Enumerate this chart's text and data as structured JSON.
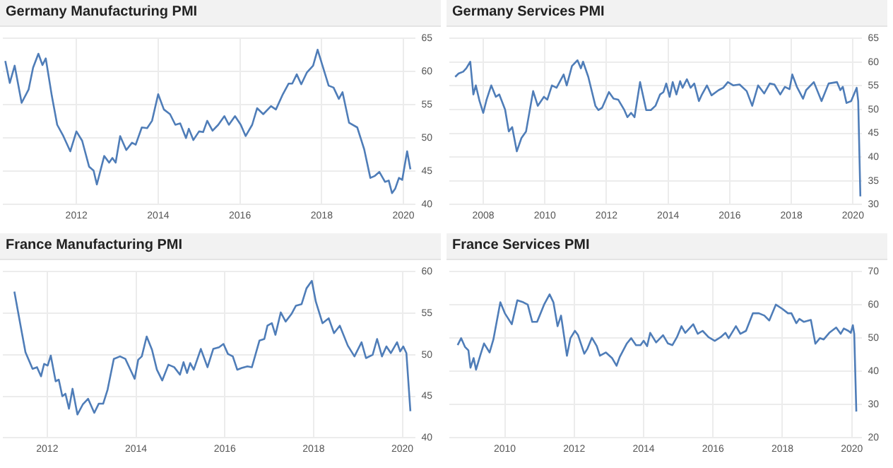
{
  "chart_data": [
    {
      "type": "line",
      "title": "Germany Manufacturing PMI",
      "color": "#4f7db8",
      "marker": "none",
      "grid": true,
      "xlim": [
        2010.2,
        2020.3
      ],
      "xticks": [
        2012,
        2014,
        2016,
        2018,
        2020
      ],
      "ylim": [
        40,
        65
      ],
      "yticks": [
        40,
        45,
        50,
        55,
        60,
        65
      ],
      "x": [
        2010.26,
        2010.37,
        2010.49,
        2010.66,
        2010.83,
        2010.94,
        2011.07,
        2011.17,
        2011.25,
        2011.4,
        2011.53,
        2011.68,
        2011.85,
        2012.0,
        2012.14,
        2012.31,
        2012.42,
        2012.5,
        2012.68,
        2012.8,
        2012.88,
        2012.96,
        2013.07,
        2013.22,
        2013.36,
        2013.45,
        2013.6,
        2013.73,
        2013.85,
        2014.0,
        2014.14,
        2014.29,
        2014.42,
        2014.54,
        2014.68,
        2014.75,
        2014.86,
        2015.0,
        2015.1,
        2015.2,
        2015.33,
        2015.47,
        2015.62,
        2015.73,
        2015.88,
        2016.02,
        2016.14,
        2016.3,
        2016.42,
        2016.57,
        2016.76,
        2016.88,
        2017.05,
        2017.19,
        2017.28,
        2017.39,
        2017.5,
        2017.64,
        2017.79,
        2017.9,
        2018.02,
        2018.17,
        2018.29,
        2018.42,
        2018.51,
        2018.67,
        2018.87,
        2019.04,
        2019.19,
        2019.3,
        2019.41,
        2019.55,
        2019.64,
        2019.72,
        2019.8,
        2019.89,
        2019.97,
        2020.09,
        2020.17
      ],
      "values": [
        61.6,
        58.3,
        60.9,
        55.3,
        57.3,
        60.6,
        62.7,
        61,
        62,
        56.3,
        52,
        50.3,
        48,
        51,
        49.6,
        45.7,
        45.1,
        43,
        47.3,
        46.3,
        47,
        46.3,
        50.3,
        48.2,
        49.3,
        49,
        51.6,
        51.5,
        52.6,
        56.6,
        54.3,
        53.6,
        52,
        52.2,
        50,
        51.4,
        49.7,
        51,
        50.9,
        52.6,
        51.1,
        52,
        53.3,
        52,
        53.3,
        52,
        50.3,
        52,
        54.5,
        53.6,
        54.8,
        54.3,
        56.6,
        58.2,
        58.2,
        59.6,
        58.1,
        59.9,
        60.9,
        63.3,
        60.9,
        57.9,
        57.6,
        55.9,
        56.9,
        52.3,
        51.6,
        48.3,
        44,
        44.3,
        44.9,
        43.4,
        43.6,
        41.7,
        42.4,
        44,
        43.7,
        48,
        45.3
      ]
    },
    {
      "type": "line",
      "title": "Germany Services PMI",
      "color": "#4f7db8",
      "marker": "none",
      "grid": true,
      "xlim": [
        2006.9,
        2020.3
      ],
      "xticks": [
        2008,
        2010,
        2012,
        2014,
        2016,
        2018,
        2020
      ],
      "ylim": [
        30,
        65
      ],
      "yticks": [
        30,
        35,
        40,
        45,
        50,
        55,
        60,
        65
      ],
      "x": [
        2007.09,
        2007.2,
        2007.35,
        2007.45,
        2007.58,
        2007.68,
        2007.76,
        2007.88,
        2008.0,
        2008.11,
        2008.26,
        2008.41,
        2008.52,
        2008.71,
        2008.83,
        2008.94,
        2009.09,
        2009.24,
        2009.39,
        2009.62,
        2009.77,
        2009.97,
        2010.08,
        2010.23,
        2010.38,
        2010.61,
        2010.71,
        2010.88,
        2011.06,
        2011.17,
        2011.24,
        2011.41,
        2011.64,
        2011.74,
        2011.86,
        2012.08,
        2012.23,
        2012.38,
        2012.58,
        2012.68,
        2012.8,
        2012.91,
        2013.09,
        2013.29,
        2013.44,
        2013.59,
        2013.74,
        2013.85,
        2013.94,
        2014.05,
        2014.15,
        2014.27,
        2014.39,
        2014.47,
        2014.61,
        2014.73,
        2014.85,
        2015.0,
        2015.1,
        2015.26,
        2015.41,
        2015.64,
        2015.79,
        2015.94,
        2016.12,
        2016.32,
        2016.55,
        2016.73,
        2016.92,
        2017.12,
        2017.3,
        2017.45,
        2017.64,
        2017.79,
        2017.94,
        2018.03,
        2018.18,
        2018.38,
        2018.48,
        2018.73,
        2018.98,
        2019.21,
        2019.48,
        2019.59,
        2019.67,
        2019.79,
        2019.94,
        2020.12,
        2020.17,
        2020.24
      ],
      "values": [
        56.9,
        57.6,
        58,
        58.7,
        60.1,
        53.2,
        55.1,
        51.8,
        49.3,
        52.1,
        55.1,
        52.7,
        53.2,
        50,
        45.4,
        46.3,
        41.2,
        44,
        45.4,
        53.9,
        50.8,
        52.7,
        52.1,
        55.1,
        54.6,
        57.4,
        55.1,
        59.2,
        60.4,
        58.7,
        60.1,
        56.9,
        50.8,
        49.9,
        50.4,
        53.7,
        52.3,
        52.1,
        49.9,
        48.4,
        49.3,
        48.4,
        55.8,
        49.9,
        49.9,
        50.8,
        53.2,
        53.7,
        55.5,
        52.7,
        55.8,
        53.2,
        56,
        54.6,
        56.4,
        54.6,
        55.5,
        51.8,
        53.2,
        55.1,
        53,
        54.1,
        54.6,
        55.8,
        55.1,
        55.3,
        53.9,
        50.8,
        55.1,
        53.4,
        55.5,
        55.3,
        53.2,
        54.8,
        54.3,
        57.4,
        54.8,
        52.3,
        54.1,
        55.8,
        51.8,
        55.5,
        55.8,
        54.1,
        54.8,
        51.4,
        51.8,
        54.6,
        51.8,
        31.7
      ]
    },
    {
      "type": "line",
      "title": "France Manufacturing PMI",
      "color": "#4f7db8",
      "marker": "none",
      "grid": true,
      "xlim": [
        2011.0,
        2020.3
      ],
      "xticks": [
        2012,
        2014,
        2016,
        2018,
        2020
      ],
      "ylim": [
        40,
        60
      ],
      "yticks": [
        40,
        45,
        50,
        55,
        60
      ],
      "x": [
        2011.26,
        2011.41,
        2011.51,
        2011.67,
        2011.77,
        2011.86,
        2011.93,
        2012.01,
        2012.08,
        2012.19,
        2012.26,
        2012.34,
        2012.41,
        2012.49,
        2012.57,
        2012.68,
        2012.8,
        2012.92,
        2013.06,
        2013.16,
        2013.26,
        2013.36,
        2013.5,
        2013.64,
        2013.76,
        2013.9,
        2013.97,
        2014.05,
        2014.13,
        2014.24,
        2014.36,
        2014.47,
        2014.59,
        2014.73,
        2014.86,
        2014.99,
        2015.07,
        2015.15,
        2015.22,
        2015.3,
        2015.46,
        2015.61,
        2015.74,
        2015.87,
        2015.97,
        2016.07,
        2016.18,
        2016.28,
        2016.38,
        2016.51,
        2016.61,
        2016.78,
        2016.89,
        2016.96,
        2017.06,
        2017.14,
        2017.26,
        2017.37,
        2017.5,
        2017.6,
        2017.73,
        2017.84,
        2017.96,
        2018.05,
        2018.2,
        2018.34,
        2018.46,
        2018.59,
        2018.77,
        2018.92,
        2019.08,
        2019.18,
        2019.33,
        2019.43,
        2019.54,
        2019.64,
        2019.74,
        2019.88,
        2019.95,
        2020.02,
        2020.09,
        2020.18
      ],
      "values": [
        57.6,
        53.2,
        50.3,
        48.3,
        48.5,
        47.4,
        48.9,
        48.7,
        49.9,
        46.8,
        47,
        45,
        45.3,
        43.5,
        45.9,
        42.8,
        44,
        44.7,
        43,
        44.1,
        44.1,
        45.8,
        49.5,
        49.8,
        49.5,
        47.9,
        47.1,
        49.4,
        49.8,
        52.2,
        50.6,
        48.2,
        46.9,
        48.8,
        48.5,
        47.6,
        49.1,
        47.8,
        49,
        48.2,
        50.7,
        48.5,
        50.7,
        50.9,
        51.3,
        50.1,
        49.8,
        48.2,
        48.4,
        48.6,
        48.5,
        51.7,
        51.9,
        53.5,
        53.8,
        52.4,
        55.1,
        54,
        54.9,
        55.9,
        56.1,
        58,
        58.9,
        56.4,
        53.8,
        54.4,
        52.6,
        53.5,
        51.1,
        49.8,
        51.5,
        49.6,
        50,
        51.9,
        49.8,
        51,
        50.2,
        51.5,
        50.4,
        51,
        50.2,
        43.2
      ]
    },
    {
      "type": "line",
      "title": "France Services PMI",
      "color": "#4f7db8",
      "marker": "none",
      "grid": true,
      "xlim": [
        2008.4,
        2020.3
      ],
      "xticks": [
        2010,
        2012,
        2014,
        2016,
        2018,
        2020
      ],
      "ylim": [
        20,
        70
      ],
      "yticks": [
        20,
        30,
        40,
        50,
        60,
        70
      ],
      "x": [
        2008.64,
        2008.74,
        2008.85,
        2008.95,
        2009.01,
        2009.1,
        2009.17,
        2009.3,
        2009.4,
        2009.56,
        2009.67,
        2009.87,
        2010.0,
        2010.2,
        2010.36,
        2010.53,
        2010.66,
        2010.79,
        2010.93,
        2011.13,
        2011.29,
        2011.4,
        2011.52,
        2011.62,
        2011.79,
        2011.89,
        2012.02,
        2012.11,
        2012.29,
        2012.38,
        2012.51,
        2012.65,
        2012.74,
        2012.91,
        2013.09,
        2013.22,
        2013.31,
        2013.51,
        2013.64,
        2013.78,
        2013.91,
        2014.0,
        2014.1,
        2014.19,
        2014.36,
        2014.56,
        2014.7,
        2014.83,
        2014.96,
        2015.09,
        2015.2,
        2015.43,
        2015.56,
        2015.7,
        2015.87,
        2016.05,
        2016.22,
        2016.36,
        2016.45,
        2016.66,
        2016.79,
        2016.95,
        2017.15,
        2017.32,
        2017.48,
        2017.62,
        2017.81,
        2018.0,
        2018.16,
        2018.26,
        2018.4,
        2018.49,
        2018.62,
        2018.82,
        2018.95,
        2019.08,
        2019.19,
        2019.35,
        2019.55,
        2019.68,
        2019.77,
        2019.9,
        2019.97,
        2020.03,
        2020.07,
        2020.13
      ],
      "values": [
        47.9,
        50,
        47.4,
        46.3,
        41.1,
        44,
        40.5,
        45.1,
        48.4,
        45.7,
        49.6,
        60.8,
        57.5,
        54.2,
        61.4,
        60.8,
        60.1,
        54.9,
        54.9,
        60.1,
        63.2,
        60.8,
        53.6,
        56.8,
        44.7,
        50,
        52.2,
        50.9,
        45.3,
        46.8,
        50.1,
        47.6,
        44.7,
        45.7,
        44,
        41.7,
        44.3,
        48.3,
        50,
        47.9,
        47.9,
        49.2,
        47.6,
        51.6,
        48.7,
        50.9,
        48.4,
        47.9,
        50.3,
        53.6,
        51.6,
        54.2,
        51.3,
        52.2,
        50.3,
        49.2,
        50.3,
        51.6,
        50,
        53.6,
        51.3,
        52.2,
        57.5,
        57.5,
        56.8,
        55.3,
        60.1,
        58.8,
        57.5,
        57.5,
        54.5,
        55.8,
        54.9,
        55.5,
        48.3,
        50,
        49.6,
        51.6,
        53.2,
        51.3,
        52.9,
        52.2,
        51.6,
        53.9,
        51.3,
        27.9
      ]
    }
  ]
}
